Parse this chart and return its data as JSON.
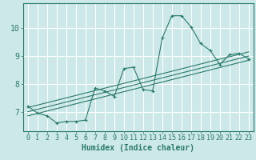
{
  "title": "",
  "xlabel": "Humidex (Indice chaleur)",
  "ylabel": "",
  "background_color": "#cce8e8",
  "grid_color": "#ffffff",
  "line_color": "#2a7a6a",
  "x_ticks": [
    0,
    1,
    2,
    3,
    4,
    5,
    6,
    7,
    8,
    9,
    10,
    11,
    12,
    13,
    14,
    15,
    16,
    17,
    18,
    19,
    20,
    21,
    22,
    23
  ],
  "y_ticks": [
    7,
    8,
    9,
    10
  ],
  "ylim": [
    6.3,
    10.9
  ],
  "xlim": [
    -0.5,
    23.5
  ],
  "main_line": {
    "x": [
      0,
      1,
      2,
      3,
      4,
      5,
      6,
      7,
      8,
      9,
      10,
      11,
      12,
      13,
      14,
      15,
      16,
      17,
      18,
      19,
      20,
      21,
      22,
      23
    ],
    "y": [
      7.2,
      6.95,
      6.85,
      6.6,
      6.65,
      6.65,
      6.7,
      7.85,
      7.75,
      7.55,
      8.55,
      8.6,
      7.8,
      7.75,
      9.65,
      10.45,
      10.45,
      10.05,
      9.45,
      9.2,
      8.7,
      9.05,
      9.1,
      8.9
    ]
  },
  "regression_lines": [
    {
      "x": [
        0,
        23
      ],
      "y": [
        6.85,
        8.85
      ]
    },
    {
      "x": [
        0,
        23
      ],
      "y": [
        7.0,
        9.0
      ]
    },
    {
      "x": [
        0,
        23
      ],
      "y": [
        7.15,
        9.15
      ]
    }
  ],
  "xlabel_fontsize": 7,
  "tick_fontsize": 6,
  "ytick_fontsize": 7
}
